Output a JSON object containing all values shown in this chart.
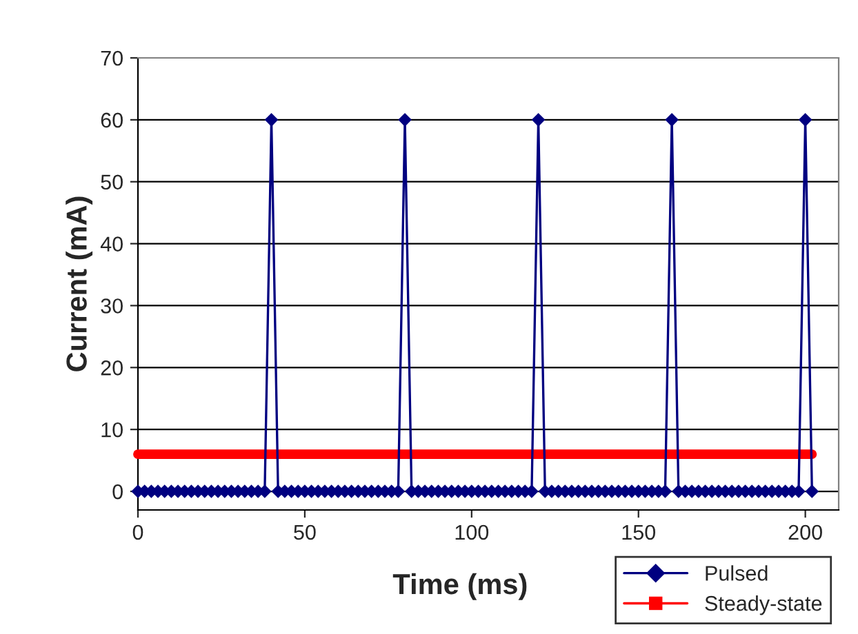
{
  "chart_data": {
    "type": "line",
    "xlabel": "Time (ms)",
    "ylabel": "Current (mA)",
    "x": [
      0,
      2,
      4,
      6,
      8,
      10,
      12,
      14,
      16,
      18,
      20,
      22,
      24,
      26,
      28,
      30,
      32,
      34,
      36,
      38,
      40,
      42,
      44,
      46,
      48,
      50,
      52,
      54,
      56,
      58,
      60,
      62,
      64,
      66,
      68,
      70,
      72,
      74,
      76,
      78,
      80,
      82,
      84,
      86,
      88,
      90,
      92,
      94,
      96,
      98,
      100,
      102,
      104,
      106,
      108,
      110,
      112,
      114,
      116,
      118,
      120,
      122,
      124,
      126,
      128,
      130,
      132,
      134,
      136,
      138,
      140,
      142,
      144,
      146,
      148,
      150,
      152,
      154,
      156,
      158,
      160,
      162,
      164,
      166,
      168,
      170,
      172,
      174,
      176,
      178,
      180,
      182,
      184,
      186,
      188,
      190,
      192,
      194,
      196,
      198,
      200,
      202
    ],
    "series": [
      {
        "name": "Pulsed",
        "color": "#000080",
        "marker": "diamond",
        "values": [
          0,
          0,
          0,
          0,
          0,
          0,
          0,
          0,
          0,
          0,
          0,
          0,
          0,
          0,
          0,
          0,
          0,
          0,
          0,
          0,
          60,
          0,
          0,
          0,
          0,
          0,
          0,
          0,
          0,
          0,
          0,
          0,
          0,
          0,
          0,
          0,
          0,
          0,
          0,
          0,
          60,
          0,
          0,
          0,
          0,
          0,
          0,
          0,
          0,
          0,
          0,
          0,
          0,
          0,
          0,
          0,
          0,
          0,
          0,
          0,
          60,
          0,
          0,
          0,
          0,
          0,
          0,
          0,
          0,
          0,
          0,
          0,
          0,
          0,
          0,
          0,
          0,
          0,
          0,
          0,
          60,
          0,
          0,
          0,
          0,
          0,
          0,
          0,
          0,
          0,
          0,
          0,
          0,
          0,
          0,
          0,
          0,
          0,
          0,
          0,
          60,
          0
        ]
      },
      {
        "name": "Steady-state",
        "color": "#ff0000",
        "marker": "square",
        "values": [
          6,
          6,
          6,
          6,
          6,
          6,
          6,
          6,
          6,
          6,
          6,
          6,
          6,
          6,
          6,
          6,
          6,
          6,
          6,
          6,
          6,
          6,
          6,
          6,
          6,
          6,
          6,
          6,
          6,
          6,
          6,
          6,
          6,
          6,
          6,
          6,
          6,
          6,
          6,
          6,
          6,
          6,
          6,
          6,
          6,
          6,
          6,
          6,
          6,
          6,
          6,
          6,
          6,
          6,
          6,
          6,
          6,
          6,
          6,
          6,
          6,
          6,
          6,
          6,
          6,
          6,
          6,
          6,
          6,
          6,
          6,
          6,
          6,
          6,
          6,
          6,
          6,
          6,
          6,
          6,
          6,
          6,
          6,
          6,
          6,
          6,
          6,
          6,
          6,
          6,
          6,
          6,
          6,
          6,
          6,
          6,
          6,
          6,
          6,
          6,
          6,
          6
        ]
      }
    ],
    "xlim": [
      0,
      210
    ],
    "xticks": [
      0,
      50,
      100,
      150,
      200
    ],
    "ylim": [
      -3,
      70
    ],
    "yticks": [
      0,
      10,
      20,
      30,
      40,
      50,
      60,
      70
    ],
    "grid": "y",
    "legend": "bottom right",
    "line_style": "solid"
  }
}
